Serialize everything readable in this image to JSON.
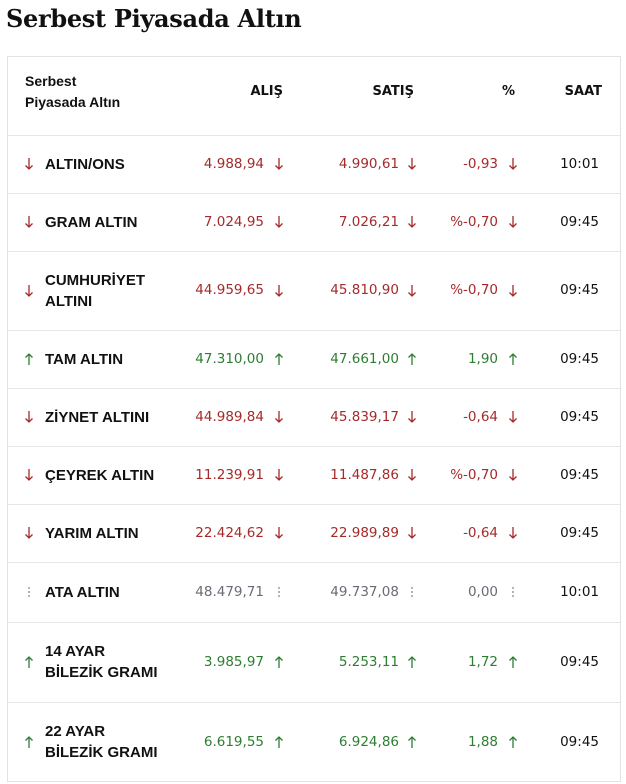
{
  "header": {
    "title": "Serbest Piyasada Altın"
  },
  "table": {
    "columns": [
      "Serbest Piyasada Altın",
      "ALIŞ",
      "SATIŞ",
      "%",
      "SAAT"
    ],
    "rows": [
      [
        "ALTIN/ONS",
        "4.988,94",
        "4.990,61",
        "-0,93",
        "10:01"
      ],
      [
        "GRAM ALTIN",
        "7.024,95",
        "7.026,21",
        "%-0,70",
        "09:45"
      ],
      [
        "CUMHURİYET ALTINI",
        "44.959,65",
        "45.810,90",
        "%-0,70",
        "09:45"
      ],
      [
        "TAM ALTIN",
        "47.310,00",
        "47.661,00",
        "1,90",
        "09:45"
      ],
      [
        "ZİYNET ALTINI",
        "44.989,84",
        "45.839,17",
        "-0,64",
        "09:45"
      ],
      [
        "ÇEYREK ALTIN",
        "11.239,91",
        "11.487,86",
        "%-0,70",
        "09:45"
      ],
      [
        "YARIM ALTIN",
        "22.424,62",
        "22.989,89",
        "-0,64",
        "09:45"
      ],
      [
        "ATA ALTIN",
        "48.479,71",
        "49.737,08",
        "0,00",
        "10:01"
      ],
      [
        "14 AYAR BİLEZİK GRAMI",
        "3.985,97",
        "5.253,11",
        "1,72",
        "09:45"
      ],
      [
        "22 AYAR BİLEZİK GRAMI",
        "6.619,55",
        "6.924,86",
        "1,88",
        "09:45"
      ]
    ]
  }
}
